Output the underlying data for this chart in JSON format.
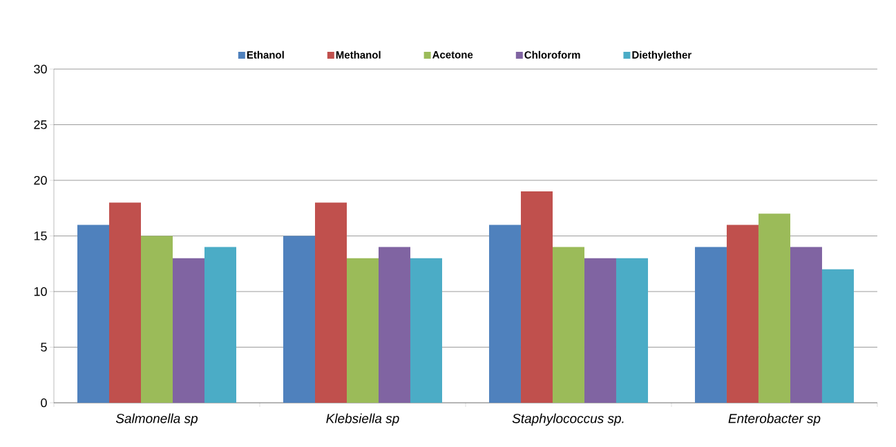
{
  "chart_data": {
    "type": "bar",
    "categories": [
      "Salmonella sp",
      "Klebsiella sp",
      "Staphylococcus sp.",
      "Enterobacter sp"
    ],
    "series": [
      {
        "name": "Ethanol",
        "color": "#4f81bd",
        "values": [
          16,
          15,
          16,
          14
        ]
      },
      {
        "name": "Methanol",
        "color": "#c0504d",
        "values": [
          18,
          18,
          19,
          16
        ]
      },
      {
        "name": "Acetone",
        "color": "#9bbb59",
        "values": [
          15,
          13,
          14,
          17
        ]
      },
      {
        "name": "Chloroform",
        "color": "#8064a2",
        "values": [
          13,
          14,
          13,
          14
        ]
      },
      {
        "name": "Diethylether",
        "color": "#4bacc6",
        "values": [
          14,
          13,
          13,
          12
        ]
      }
    ],
    "ylim": [
      0,
      30
    ],
    "yticks": [
      0,
      5,
      10,
      15,
      20,
      25,
      30
    ],
    "grid": "y",
    "legend": "top"
  }
}
